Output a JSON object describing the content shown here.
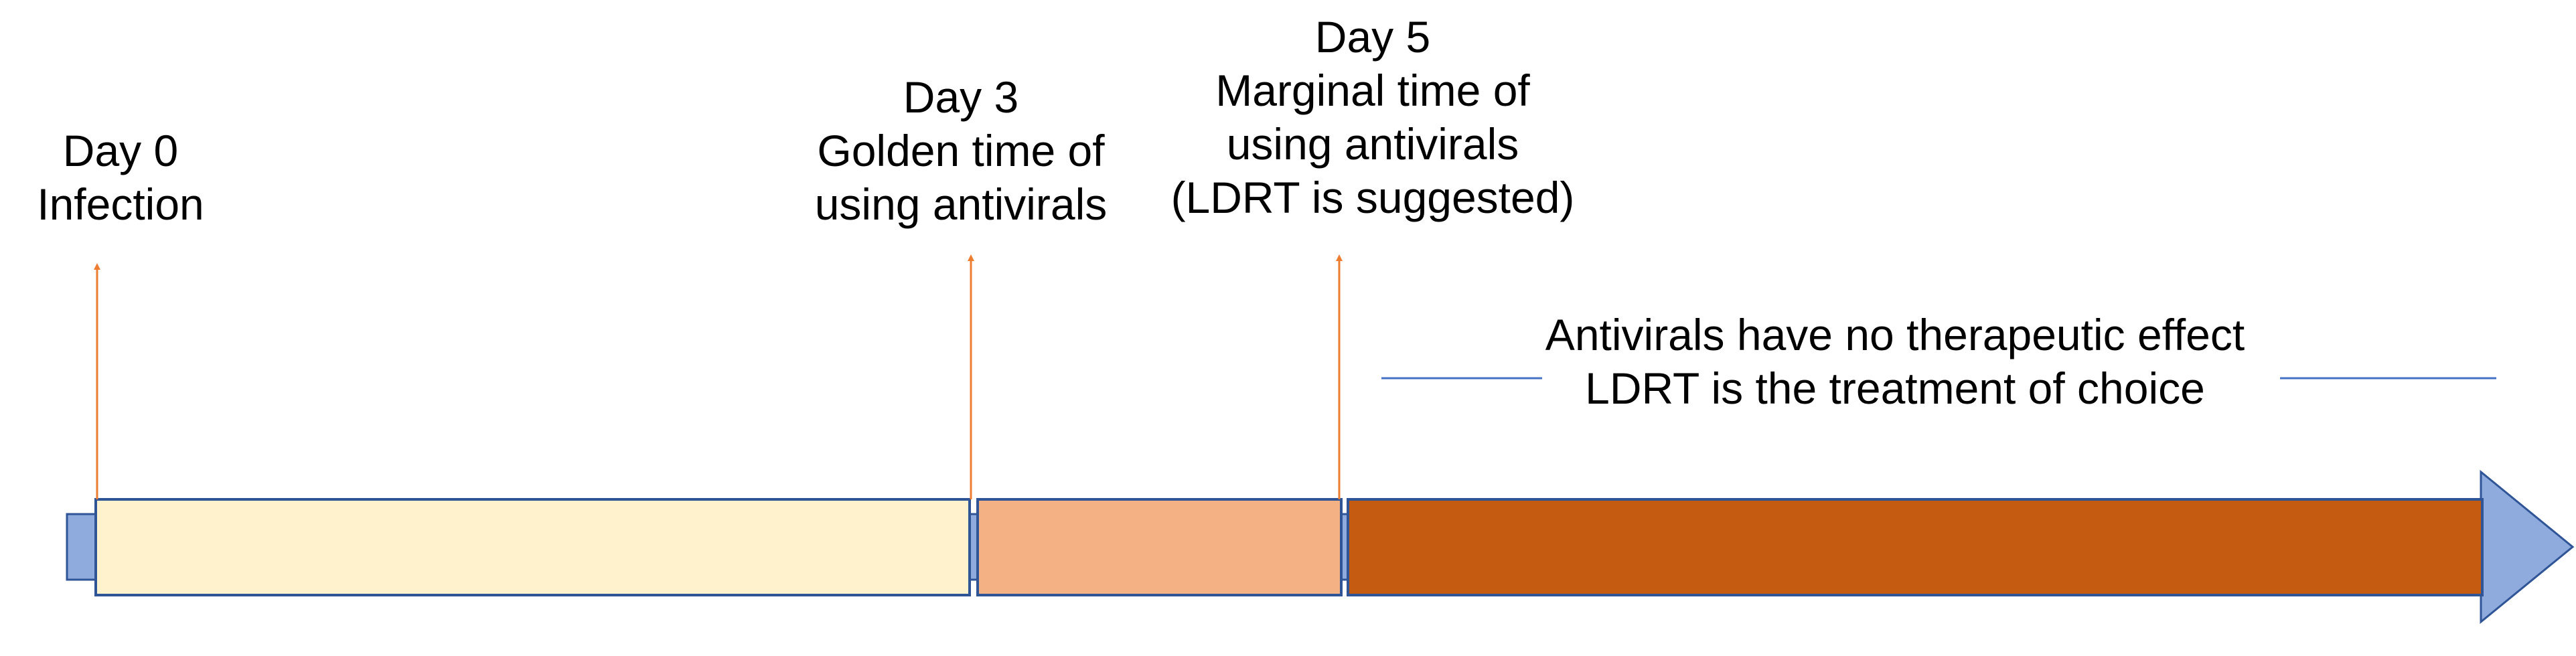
{
  "markers": [
    {
      "day": "Day 0",
      "lines": [
        "Infection"
      ]
    },
    {
      "day": "Day 3",
      "lines": [
        "Golden time of",
        "using antivirals"
      ]
    },
    {
      "day": "Day 5",
      "lines": [
        "Marginal time of",
        "using antivirals",
        "(LDRT is suggested)"
      ]
    }
  ],
  "note": {
    "lines": [
      "Antivirals have no therapeutic effect",
      "LDRT is the treatment of choice"
    ]
  },
  "colors": {
    "arrow": "#8faadc",
    "outline": "#2f5597",
    "marker_line": "#ed7d31",
    "note_line": "#4472c4",
    "phase_golden": "#fff2cc",
    "phase_marginal": "#f4b183",
    "phase_late": "#c55a11"
  }
}
